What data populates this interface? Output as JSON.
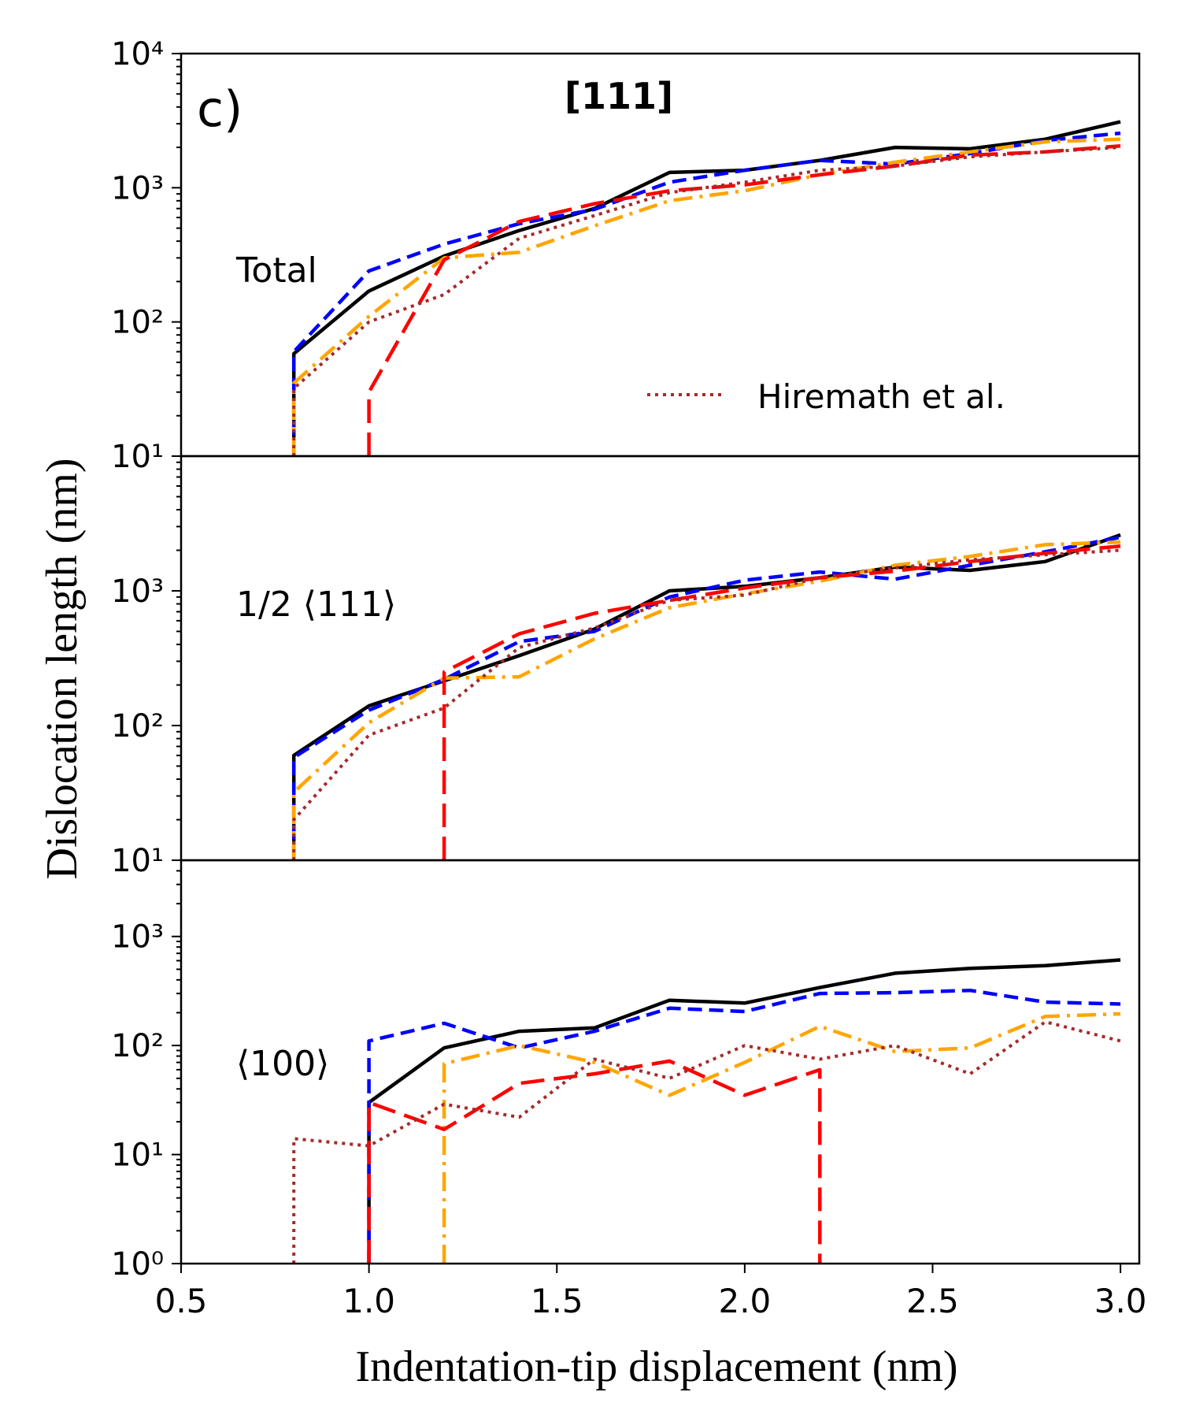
{
  "figure": {
    "panel_label": "c)",
    "title": "[111]",
    "xlabel": "Indentation-tip displacement (nm)",
    "ylabel": "Dislocation length (nm)",
    "legend_label": "Hiremath et al."
  },
  "chart_data": [
    {
      "type": "line",
      "panel": "Total",
      "label": "Total",
      "yscale": "log",
      "xlim": [
        0.5,
        3.05
      ],
      "ylim": [
        10,
        10000
      ],
      "yticks": [
        {
          "v": 10,
          "e": "1"
        },
        {
          "v": 100,
          "e": "2"
        },
        {
          "v": 1000,
          "e": "3"
        },
        {
          "v": 10000,
          "e": "4"
        }
      ],
      "xticks": [
        0.5,
        1.0,
        1.5,
        2.0,
        2.5,
        3.0
      ],
      "series": [
        {
          "name": "black",
          "color": "#000000",
          "style": "solid",
          "x": [
            0.8,
            0.8,
            1.0,
            1.2,
            1.4,
            1.6,
            1.8,
            2.0,
            2.2,
            2.4,
            2.6,
            2.8,
            3.0
          ],
          "y": [
            10,
            58,
            170,
            310,
            480,
            700,
            1300,
            1350,
            1600,
            2000,
            1950,
            2300,
            3100
          ]
        },
        {
          "name": "blue",
          "color": "#0000ff",
          "style": "dashed",
          "x": [
            0.8,
            0.8,
            1.0,
            1.2,
            1.4,
            1.6,
            1.8,
            2.0,
            2.2,
            2.4,
            2.6,
            2.8,
            3.0
          ],
          "y": [
            10,
            60,
            240,
            380,
            540,
            690,
            1100,
            1350,
            1600,
            1500,
            1800,
            2250,
            2550
          ]
        },
        {
          "name": "orange",
          "color": "#ffa500",
          "style": "dashdot",
          "x": [
            0.8,
            0.8,
            1.0,
            1.2,
            1.4,
            1.6,
            1.8,
            2.0,
            2.2,
            2.4,
            2.6,
            2.8,
            3.0
          ],
          "y": [
            10,
            35,
            110,
            300,
            330,
            520,
            800,
            950,
            1250,
            1550,
            1850,
            2200,
            2300
          ]
        },
        {
          "name": "red",
          "color": "#ff0000",
          "style": "longdash",
          "x": [
            1.0,
            1.0,
            1.2,
            1.4,
            1.6,
            1.8,
            2.0,
            2.2,
            2.4,
            2.6,
            2.8,
            3.0
          ],
          "y": [
            10,
            30,
            290,
            560,
            760,
            950,
            1050,
            1250,
            1450,
            1750,
            1850,
            2050
          ]
        },
        {
          "name": "Hiremath et al.",
          "color": "#a52a2a",
          "style": "dotted",
          "x": [
            0.8,
            0.8,
            1.0,
            1.2,
            1.4,
            1.6,
            1.8,
            2.0,
            2.2,
            2.4,
            2.6,
            2.8,
            3.0
          ],
          "y": [
            10,
            32,
            100,
            160,
            420,
            620,
            920,
            1100,
            1350,
            1450,
            1700,
            1850,
            2000
          ]
        }
      ]
    },
    {
      "type": "line",
      "panel": "1/2 <111>",
      "label": "1/2 ⟨111⟩",
      "yscale": "log",
      "xlim": [
        0.5,
        3.05
      ],
      "ylim": [
        10,
        10000
      ],
      "yticks": [
        {
          "v": 10,
          "e": "1"
        },
        {
          "v": 100,
          "e": "2"
        },
        {
          "v": 1000,
          "e": "3"
        }
      ],
      "xticks": [
        0.5,
        1.0,
        1.5,
        2.0,
        2.5,
        3.0
      ],
      "series": [
        {
          "name": "black",
          "color": "#000000",
          "style": "solid",
          "x": [
            0.8,
            0.8,
            1.0,
            1.2,
            1.4,
            1.6,
            1.8,
            2.0,
            2.2,
            2.4,
            2.6,
            2.8,
            3.0
          ],
          "y": [
            10,
            60,
            140,
            215,
            330,
            520,
            1000,
            1080,
            1250,
            1500,
            1420,
            1650,
            2600
          ]
        },
        {
          "name": "blue",
          "color": "#0000ff",
          "style": "dashed",
          "x": [
            0.8,
            0.8,
            1.0,
            1.2,
            1.4,
            1.6,
            1.8,
            2.0,
            2.2,
            2.4,
            2.6,
            2.8,
            3.0
          ],
          "y": [
            10,
            58,
            130,
            220,
            420,
            500,
            900,
            1200,
            1380,
            1220,
            1550,
            1950,
            2500
          ]
        },
        {
          "name": "orange",
          "color": "#ffa500",
          "style": "dashdot",
          "x": [
            0.8,
            0.8,
            1.0,
            1.2,
            1.4,
            1.6,
            1.8,
            2.0,
            2.2,
            2.4,
            2.6,
            2.8,
            3.0
          ],
          "y": [
            10,
            32,
            105,
            225,
            230,
            440,
            750,
            950,
            1180,
            1550,
            1800,
            2200,
            2300
          ]
        },
        {
          "name": "red",
          "color": "#ff0000",
          "style": "longdash",
          "x": [
            1.2,
            1.2,
            1.4,
            1.6,
            1.8,
            2.0,
            2.2,
            2.4,
            2.6,
            2.8,
            3.0
          ],
          "y": [
            10,
            250,
            480,
            680,
            850,
            1050,
            1250,
            1400,
            1650,
            1900,
            2150
          ]
        },
        {
          "name": "Hiremath et al.",
          "color": "#a52a2a",
          "style": "dotted",
          "x": [
            0.8,
            0.8,
            1.0,
            1.2,
            1.4,
            1.6,
            1.8,
            2.0,
            2.2,
            2.4,
            2.6,
            2.8,
            3.0
          ],
          "y": [
            10,
            20,
            85,
            135,
            380,
            530,
            850,
            930,
            1250,
            1480,
            1700,
            1850,
            2000
          ]
        }
      ]
    },
    {
      "type": "line",
      "panel": "<100>",
      "label": "⟨100⟩",
      "yscale": "log",
      "xlim": [
        0.5,
        3.05
      ],
      "ylim": [
        1,
        5000
      ],
      "yticks": [
        {
          "v": 1,
          "e": "0"
        },
        {
          "v": 10,
          "e": "1"
        },
        {
          "v": 100,
          "e": "2"
        },
        {
          "v": 1000,
          "e": "3"
        }
      ],
      "xticks": [
        0.5,
        1.0,
        1.5,
        2.0,
        2.5,
        3.0
      ],
      "series": [
        {
          "name": "black",
          "color": "#000000",
          "style": "solid",
          "x": [
            1.0,
            1.0,
            1.2,
            1.4,
            1.6,
            1.8,
            2.0,
            2.2,
            2.4,
            2.6,
            2.8,
            3.0
          ],
          "y": [
            1,
            30,
            95,
            135,
            145,
            260,
            245,
            340,
            460,
            510,
            540,
            610
          ]
        },
        {
          "name": "blue",
          "color": "#0000ff",
          "style": "dashed",
          "x": [
            1.0,
            1.0,
            1.2,
            1.4,
            1.6,
            1.8,
            2.0,
            2.2,
            2.4,
            2.6,
            2.8,
            3.0
          ],
          "y": [
            1,
            110,
            160,
            95,
            135,
            220,
            205,
            300,
            305,
            320,
            250,
            240
          ]
        },
        {
          "name": "orange",
          "color": "#ffa500",
          "style": "dashdot",
          "x": [
            1.2,
            1.2,
            1.4,
            1.6,
            1.8,
            2.0,
            2.2,
            2.4,
            2.6,
            2.8,
            3.0
          ],
          "y": [
            1,
            68,
            100,
            70,
            35,
            70,
            150,
            88,
            95,
            185,
            195
          ]
        },
        {
          "name": "red",
          "color": "#ff0000",
          "style": "longdash",
          "x": [
            1.0,
            1.0,
            1.2,
            1.4,
            1.6,
            1.8,
            2.0,
            2.2,
            2.2
          ],
          "y": [
            1,
            30,
            17,
            45,
            55,
            72,
            35,
            60,
            1
          ]
        },
        {
          "name": "Hiremath et al.",
          "color": "#a52a2a",
          "style": "dotted",
          "x": [
            0.8,
            0.8,
            1.0,
            1.2,
            1.4,
            1.6,
            1.8,
            2.0,
            2.2,
            2.4,
            2.6,
            2.8,
            3.0
          ],
          "y": [
            1,
            14,
            12,
            29,
            22,
            75,
            50,
            100,
            75,
            100,
            55,
            165,
            110
          ]
        }
      ]
    }
  ]
}
